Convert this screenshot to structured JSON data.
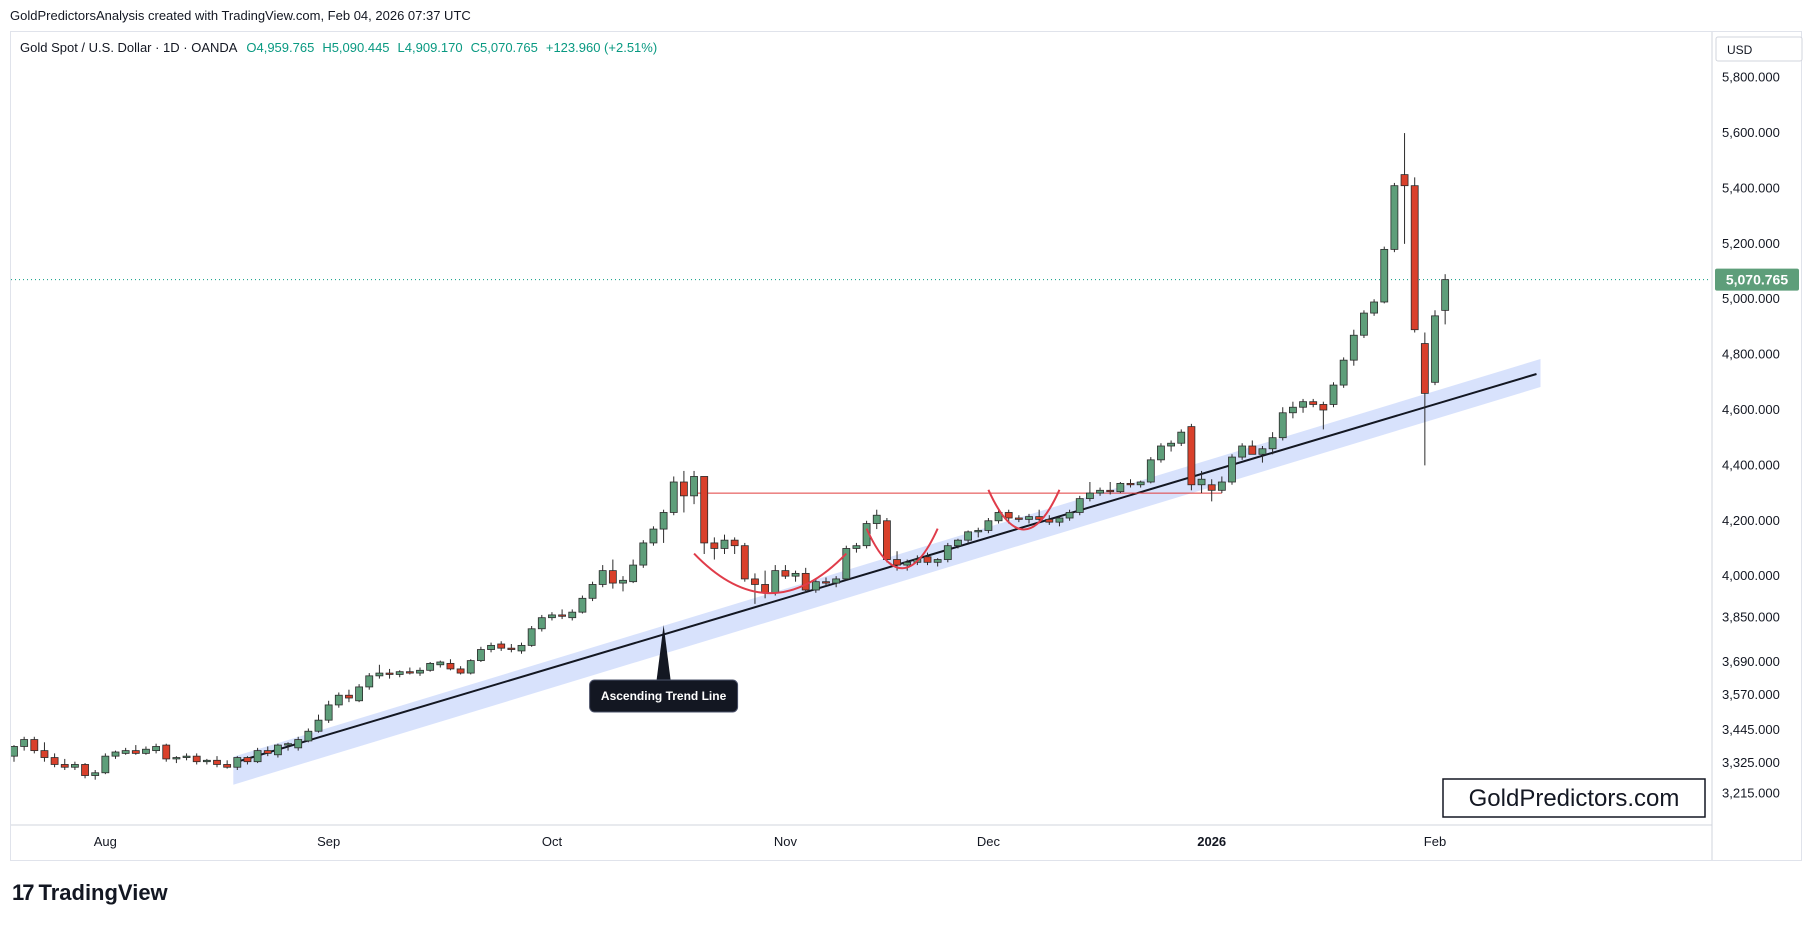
{
  "header": {
    "caption": "GoldPredictorsAnalysis created with TradingView.com, Feb 04, 2026 07:37 UTC",
    "symbol": "Gold Spot / U.S. Dollar · 1D · OANDA",
    "open": "O4,959.765",
    "high": "H5,090.445",
    "low": "L4,909.170",
    "close": "C5,070.765",
    "change": "+123.960 (+2.51%)"
  },
  "footer": {
    "brand": "TradingView",
    "logo_icon": "tradingview-logo-icon"
  },
  "chart_data": {
    "type": "candlestick",
    "title": "Gold Spot / U.S. Dollar · 1D · OANDA",
    "currency": "USD",
    "y_ticks": [
      "5,800.000",
      "5,600.000",
      "5,400.000",
      "5,200.000",
      "5,000.000",
      "4,800.000",
      "4,600.000",
      "4,400.000",
      "4,200.000",
      "4,000.000",
      "3,850.000",
      "3,690.000",
      "3,570.000",
      "3,445.000",
      "3,325.000",
      "3,215.000"
    ],
    "y_tick_values": [
      5800,
      5600,
      5400,
      5200,
      5000,
      4800,
      4600,
      4400,
      4200,
      4000,
      3850,
      3690,
      3570,
      3445,
      3325,
      3215
    ],
    "ylim": [
      3170,
      5900
    ],
    "x_ticks": [
      {
        "label": "Aug",
        "index": 9
      },
      {
        "label": "Sep",
        "index": 31
      },
      {
        "label": "Oct",
        "index": 53
      },
      {
        "label": "Nov",
        "index": 76
      },
      {
        "label": "Dec",
        "index": 96
      },
      {
        "label": "2026",
        "index": 118
      },
      {
        "label": "Feb",
        "index": 140
      }
    ],
    "last_price": "5,070.765",
    "last_price_value": 5070.765,
    "resistance_level": 4300,
    "watermark": "GoldPredictors.com",
    "annotation": "Ascending Trend Line",
    "trend_line": {
      "start": {
        "index": 22,
        "price": 3330
      },
      "end": {
        "index": 150,
        "price": 4730
      }
    },
    "arcs": [
      {
        "from_index": 67,
        "to_index": 82,
        "depth_price": 3930
      },
      {
        "from_index": 84,
        "to_index": 91,
        "depth_price": 4020
      },
      {
        "from_index": 96,
        "to_index": 103,
        "depth_price": 4160
      }
    ],
    "candles": [
      {
        "o": 3350,
        "h": 3390,
        "l": 3330,
        "c": 3385
      },
      {
        "o": 3385,
        "h": 3420,
        "l": 3370,
        "c": 3410
      },
      {
        "o": 3410,
        "h": 3420,
        "l": 3360,
        "c": 3370
      },
      {
        "o": 3370,
        "h": 3400,
        "l": 3330,
        "c": 3345
      },
      {
        "o": 3345,
        "h": 3360,
        "l": 3310,
        "c": 3320
      },
      {
        "o": 3320,
        "h": 3340,
        "l": 3300,
        "c": 3310
      },
      {
        "o": 3310,
        "h": 3330,
        "l": 3300,
        "c": 3320
      },
      {
        "o": 3320,
        "h": 3325,
        "l": 3270,
        "c": 3280
      },
      {
        "o": 3280,
        "h": 3300,
        "l": 3265,
        "c": 3290
      },
      {
        "o": 3290,
        "h": 3360,
        "l": 3285,
        "c": 3350
      },
      {
        "o": 3350,
        "h": 3370,
        "l": 3340,
        "c": 3365
      },
      {
        "o": 3360,
        "h": 3380,
        "l": 3355,
        "c": 3370
      },
      {
        "o": 3370,
        "h": 3390,
        "l": 3355,
        "c": 3360
      },
      {
        "o": 3360,
        "h": 3385,
        "l": 3355,
        "c": 3375
      },
      {
        "o": 3370,
        "h": 3395,
        "l": 3360,
        "c": 3385
      },
      {
        "o": 3390,
        "h": 3395,
        "l": 3330,
        "c": 3340
      },
      {
        "o": 3340,
        "h": 3350,
        "l": 3325,
        "c": 3345
      },
      {
        "o": 3345,
        "h": 3360,
        "l": 3335,
        "c": 3350
      },
      {
        "o": 3350,
        "h": 3360,
        "l": 3320,
        "c": 3330
      },
      {
        "o": 3330,
        "h": 3340,
        "l": 3320,
        "c": 3335
      },
      {
        "o": 3335,
        "h": 3350,
        "l": 3310,
        "c": 3320
      },
      {
        "o": 3320,
        "h": 3335,
        "l": 3305,
        "c": 3310
      },
      {
        "o": 3310,
        "h": 3350,
        "l": 3300,
        "c": 3345
      },
      {
        "o": 3345,
        "h": 3350,
        "l": 3320,
        "c": 3330
      },
      {
        "o": 3330,
        "h": 3380,
        "l": 3325,
        "c": 3370
      },
      {
        "o": 3370,
        "h": 3385,
        "l": 3350,
        "c": 3360
      },
      {
        "o": 3355,
        "h": 3395,
        "l": 3345,
        "c": 3390
      },
      {
        "o": 3390,
        "h": 3400,
        "l": 3370,
        "c": 3395
      },
      {
        "o": 3380,
        "h": 3420,
        "l": 3370,
        "c": 3410
      },
      {
        "o": 3405,
        "h": 3450,
        "l": 3400,
        "c": 3440
      },
      {
        "o": 3440,
        "h": 3500,
        "l": 3435,
        "c": 3480
      },
      {
        "o": 3480,
        "h": 3550,
        "l": 3470,
        "c": 3535
      },
      {
        "o": 3535,
        "h": 3580,
        "l": 3525,
        "c": 3570
      },
      {
        "o": 3570,
        "h": 3590,
        "l": 3545,
        "c": 3560
      },
      {
        "o": 3550,
        "h": 3610,
        "l": 3545,
        "c": 3600
      },
      {
        "o": 3600,
        "h": 3650,
        "l": 3590,
        "c": 3640
      },
      {
        "o": 3640,
        "h": 3680,
        "l": 3630,
        "c": 3650
      },
      {
        "o": 3650,
        "h": 3665,
        "l": 3630,
        "c": 3645
      },
      {
        "o": 3645,
        "h": 3660,
        "l": 3635,
        "c": 3655
      },
      {
        "o": 3655,
        "h": 3670,
        "l": 3645,
        "c": 3650
      },
      {
        "o": 3650,
        "h": 3670,
        "l": 3640,
        "c": 3660
      },
      {
        "o": 3660,
        "h": 3690,
        "l": 3655,
        "c": 3685
      },
      {
        "o": 3680,
        "h": 3695,
        "l": 3670,
        "c": 3690
      },
      {
        "o": 3685,
        "h": 3700,
        "l": 3660,
        "c": 3665
      },
      {
        "o": 3665,
        "h": 3675,
        "l": 3645,
        "c": 3650
      },
      {
        "o": 3650,
        "h": 3700,
        "l": 3645,
        "c": 3695
      },
      {
        "o": 3695,
        "h": 3745,
        "l": 3690,
        "c": 3735
      },
      {
        "o": 3735,
        "h": 3760,
        "l": 3725,
        "c": 3750
      },
      {
        "o": 3755,
        "h": 3765,
        "l": 3730,
        "c": 3740
      },
      {
        "o": 3740,
        "h": 3755,
        "l": 3725,
        "c": 3735
      },
      {
        "o": 3730,
        "h": 3760,
        "l": 3720,
        "c": 3750
      },
      {
        "o": 3750,
        "h": 3820,
        "l": 3745,
        "c": 3810
      },
      {
        "o": 3810,
        "h": 3860,
        "l": 3800,
        "c": 3850
      },
      {
        "o": 3850,
        "h": 3870,
        "l": 3840,
        "c": 3860
      },
      {
        "o": 3860,
        "h": 3880,
        "l": 3845,
        "c": 3855
      },
      {
        "o": 3850,
        "h": 3880,
        "l": 3840,
        "c": 3870
      },
      {
        "o": 3870,
        "h": 3930,
        "l": 3865,
        "c": 3920
      },
      {
        "o": 3920,
        "h": 3980,
        "l": 3910,
        "c": 3970
      },
      {
        "o": 3970,
        "h": 4040,
        "l": 3960,
        "c": 4020
      },
      {
        "o": 4020,
        "h": 4060,
        "l": 3955,
        "c": 3975
      },
      {
        "o": 3975,
        "h": 4000,
        "l": 3945,
        "c": 3985
      },
      {
        "o": 3980,
        "h": 4060,
        "l": 3975,
        "c": 4040
      },
      {
        "o": 4040,
        "h": 4130,
        "l": 4030,
        "c": 4120
      },
      {
        "o": 4120,
        "h": 4180,
        "l": 4110,
        "c": 4170
      },
      {
        "o": 4170,
        "h": 4240,
        "l": 4120,
        "c": 4230
      },
      {
        "o": 4230,
        "h": 4360,
        "l": 4220,
        "c": 4340
      },
      {
        "o": 4340,
        "h": 4380,
        "l": 4230,
        "c": 4290
      },
      {
        "o": 4290,
        "h": 4380,
        "l": 4260,
        "c": 4360
      },
      {
        "o": 4360,
        "h": 4360,
        "l": 4080,
        "c": 4120
      },
      {
        "o": 4120,
        "h": 4140,
        "l": 4060,
        "c": 4100
      },
      {
        "o": 4100,
        "h": 4150,
        "l": 4080,
        "c": 4130
      },
      {
        "o": 4130,
        "h": 4140,
        "l": 4080,
        "c": 4110
      },
      {
        "o": 4110,
        "h": 4120,
        "l": 3980,
        "c": 3990
      },
      {
        "o": 3990,
        "h": 4010,
        "l": 3900,
        "c": 3970
      },
      {
        "o": 3970,
        "h": 4020,
        "l": 3920,
        "c": 3940
      },
      {
        "o": 3940,
        "h": 4040,
        "l": 3930,
        "c": 4020
      },
      {
        "o": 4020,
        "h": 4040,
        "l": 3990,
        "c": 4000
      },
      {
        "o": 4000,
        "h": 4020,
        "l": 3980,
        "c": 4010
      },
      {
        "o": 4010,
        "h": 4030,
        "l": 3940,
        "c": 3950
      },
      {
        "o": 3950,
        "h": 3990,
        "l": 3940,
        "c": 3980
      },
      {
        "o": 3980,
        "h": 3995,
        "l": 3965,
        "c": 3975
      },
      {
        "o": 3975,
        "h": 4000,
        "l": 3960,
        "c": 3990
      },
      {
        "o": 3990,
        "h": 4110,
        "l": 3985,
        "c": 4100
      },
      {
        "o": 4100,
        "h": 4120,
        "l": 4085,
        "c": 4110
      },
      {
        "o": 4110,
        "h": 4200,
        "l": 4100,
        "c": 4190
      },
      {
        "o": 4190,
        "h": 4240,
        "l": 4170,
        "c": 4220
      },
      {
        "o": 4200,
        "h": 4210,
        "l": 4050,
        "c": 4060
      },
      {
        "o": 4060,
        "h": 4090,
        "l": 4020,
        "c": 4040
      },
      {
        "o": 4040,
        "h": 4060,
        "l": 4020,
        "c": 4050
      },
      {
        "o": 4050,
        "h": 4075,
        "l": 4040,
        "c": 4060
      },
      {
        "o": 4070,
        "h": 4085,
        "l": 4040,
        "c": 4050
      },
      {
        "o": 4050,
        "h": 4065,
        "l": 4035,
        "c": 4060
      },
      {
        "o": 4060,
        "h": 4120,
        "l": 4050,
        "c": 4110
      },
      {
        "o": 4110,
        "h": 4135,
        "l": 4100,
        "c": 4130
      },
      {
        "o": 4130,
        "h": 4165,
        "l": 4120,
        "c": 4160
      },
      {
        "o": 4160,
        "h": 4175,
        "l": 4140,
        "c": 4165
      },
      {
        "o": 4165,
        "h": 4210,
        "l": 4155,
        "c": 4200
      },
      {
        "o": 4200,
        "h": 4245,
        "l": 4190,
        "c": 4230
      },
      {
        "o": 4230,
        "h": 4240,
        "l": 4190,
        "c": 4210
      },
      {
        "o": 4210,
        "h": 4220,
        "l": 4195,
        "c": 4205
      },
      {
        "o": 4205,
        "h": 4225,
        "l": 4190,
        "c": 4215
      },
      {
        "o": 4215,
        "h": 4240,
        "l": 4200,
        "c": 4205
      },
      {
        "o": 4205,
        "h": 4220,
        "l": 4185,
        "c": 4195
      },
      {
        "o": 4195,
        "h": 4215,
        "l": 4180,
        "c": 4210
      },
      {
        "o": 4210,
        "h": 4240,
        "l": 4200,
        "c": 4230
      },
      {
        "o": 4230,
        "h": 4290,
        "l": 4220,
        "c": 4280
      },
      {
        "o": 4280,
        "h": 4340,
        "l": 4270,
        "c": 4300
      },
      {
        "o": 4300,
        "h": 4320,
        "l": 4290,
        "c": 4310
      },
      {
        "o": 4310,
        "h": 4340,
        "l": 4295,
        "c": 4305
      },
      {
        "o": 4305,
        "h": 4340,
        "l": 4300,
        "c": 4335
      },
      {
        "o": 4335,
        "h": 4350,
        "l": 4320,
        "c": 4330
      },
      {
        "o": 4330,
        "h": 4345,
        "l": 4320,
        "c": 4340
      },
      {
        "o": 4340,
        "h": 4430,
        "l": 4335,
        "c": 4420
      },
      {
        "o": 4420,
        "h": 4480,
        "l": 4410,
        "c": 4470
      },
      {
        "o": 4470,
        "h": 4490,
        "l": 4450,
        "c": 4480
      },
      {
        "o": 4480,
        "h": 4530,
        "l": 4470,
        "c": 4520
      },
      {
        "o": 4540,
        "h": 4550,
        "l": 4310,
        "c": 4330
      },
      {
        "o": 4330,
        "h": 4380,
        "l": 4300,
        "c": 4350
      },
      {
        "o": 4330,
        "h": 4350,
        "l": 4270,
        "c": 4310
      },
      {
        "o": 4310,
        "h": 4360,
        "l": 4300,
        "c": 4340
      },
      {
        "o": 4340,
        "h": 4440,
        "l": 4330,
        "c": 4430
      },
      {
        "o": 4430,
        "h": 4480,
        "l": 4420,
        "c": 4470
      },
      {
        "o": 4470,
        "h": 4490,
        "l": 4440,
        "c": 4440
      },
      {
        "o": 4440,
        "h": 4470,
        "l": 4410,
        "c": 4460
      },
      {
        "o": 4460,
        "h": 4520,
        "l": 4440,
        "c": 4500
      },
      {
        "o": 4500,
        "h": 4610,
        "l": 4490,
        "c": 4590
      },
      {
        "o": 4590,
        "h": 4630,
        "l": 4570,
        "c": 4610
      },
      {
        "o": 4610,
        "h": 4640,
        "l": 4590,
        "c": 4630
      },
      {
        "o": 4630,
        "h": 4640,
        "l": 4610,
        "c": 4620
      },
      {
        "o": 4620,
        "h": 4630,
        "l": 4530,
        "c": 4600
      },
      {
        "o": 4620,
        "h": 4700,
        "l": 4610,
        "c": 4690
      },
      {
        "o": 4690,
        "h": 4790,
        "l": 4680,
        "c": 4780
      },
      {
        "o": 4780,
        "h": 4890,
        "l": 4760,
        "c": 4870
      },
      {
        "o": 4870,
        "h": 4960,
        "l": 4860,
        "c": 4950
      },
      {
        "o": 4950,
        "h": 5000,
        "l": 4940,
        "c": 4990
      },
      {
        "o": 4990,
        "h": 5190,
        "l": 4985,
        "c": 5180
      },
      {
        "o": 5180,
        "h": 5420,
        "l": 5170,
        "c": 5410
      },
      {
        "o": 5450,
        "h": 5600,
        "l": 5200,
        "c": 5410
      },
      {
        "o": 5410,
        "h": 5440,
        "l": 4880,
        "c": 4890
      },
      {
        "o": 4840,
        "h": 4880,
        "l": 4400,
        "c": 4660
      },
      {
        "o": 4700,
        "h": 4960,
        "l": 4690,
        "c": 4940
      },
      {
        "o": 4959.765,
        "h": 5090.445,
        "l": 4909.17,
        "c": 5070.765
      }
    ]
  }
}
